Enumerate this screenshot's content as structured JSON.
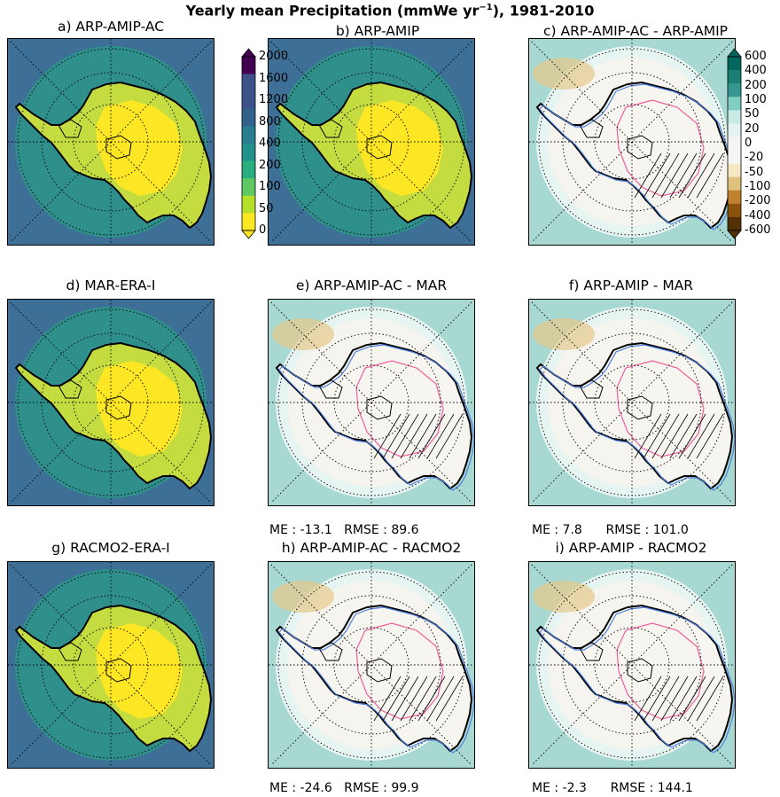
{
  "figure": {
    "title_pre": "Yearly mean Precipitation (mmWe yr",
    "title_exp": "−1",
    "title_post": "), 1981-2010"
  },
  "chart_data": [
    {
      "id": "a",
      "type": "heatmap",
      "title": "a) ARP-AMIP-AC",
      "kind": "abs",
      "stats": null
    },
    {
      "id": "b",
      "type": "heatmap",
      "title": "b) ARP-AMIP",
      "kind": "abs",
      "stats": null
    },
    {
      "id": "c",
      "type": "heatmap",
      "title": "c) ARP-AMIP-AC - ARP-AMIP",
      "kind": "diff",
      "stats": null
    },
    {
      "id": "d",
      "type": "heatmap",
      "title": "d) MAR-ERA-I",
      "kind": "abs",
      "stats": null
    },
    {
      "id": "e",
      "type": "heatmap",
      "title": "e) ARP-AMIP-AC - MAR",
      "kind": "diff",
      "stats": {
        "me": "-13.1",
        "rmse": "89.6"
      }
    },
    {
      "id": "f",
      "type": "heatmap",
      "title": "f) ARP-AMIP - MAR",
      "kind": "diff",
      "stats": {
        "me": "7.8",
        "rmse": "101.0"
      }
    },
    {
      "id": "g",
      "type": "heatmap",
      "title": "g) RACMO2-ERA-I",
      "kind": "abs",
      "stats": null
    },
    {
      "id": "h",
      "type": "heatmap",
      "title": "h) ARP-AMIP-AC - RACMO2",
      "kind": "diff",
      "stats": {
        "me": "-24.6",
        "rmse": "99.9"
      }
    },
    {
      "id": "i",
      "type": "heatmap",
      "title": "i) ARP-AMIP - RACMO2",
      "kind": "diff",
      "stats": {
        "me": "-2.3",
        "rmse": "144.1"
      }
    }
  ],
  "stats_labels": {
    "me": "ME :",
    "rmse": "RMSE :"
  },
  "colorbars": {
    "absolute": {
      "ticks": [
        "2000",
        "1600",
        "1200",
        "800",
        "400",
        "200",
        "100",
        "50",
        "0"
      ],
      "colors": [
        "#440154",
        "#3b528b",
        "#3b528b",
        "#33638d",
        "#287d8e",
        "#21918c",
        "#29af7f",
        "#5ec962",
        "#b5de2b",
        "#fde725"
      ],
      "extend": "both"
    },
    "difference": {
      "ticks": [
        "600",
        "400",
        "200",
        "100",
        "50",
        "20",
        "0",
        "-20",
        "-50",
        "-100",
        "-200",
        "-400",
        "-600"
      ],
      "colors": [
        "#01665e",
        "#1a7f75",
        "#35978f",
        "#80cdc1",
        "#c7eae5",
        "#e4f3f1",
        "#f5f5f5",
        "#f5f5f5",
        "#f6e8c3",
        "#dfc27d",
        "#bf812d",
        "#8c510a",
        "#543005"
      ],
      "extend": "both"
    }
  },
  "legend_colors": {
    "positive_contour": "#4e7fe0",
    "negative_contour": "#ee5f9f"
  }
}
